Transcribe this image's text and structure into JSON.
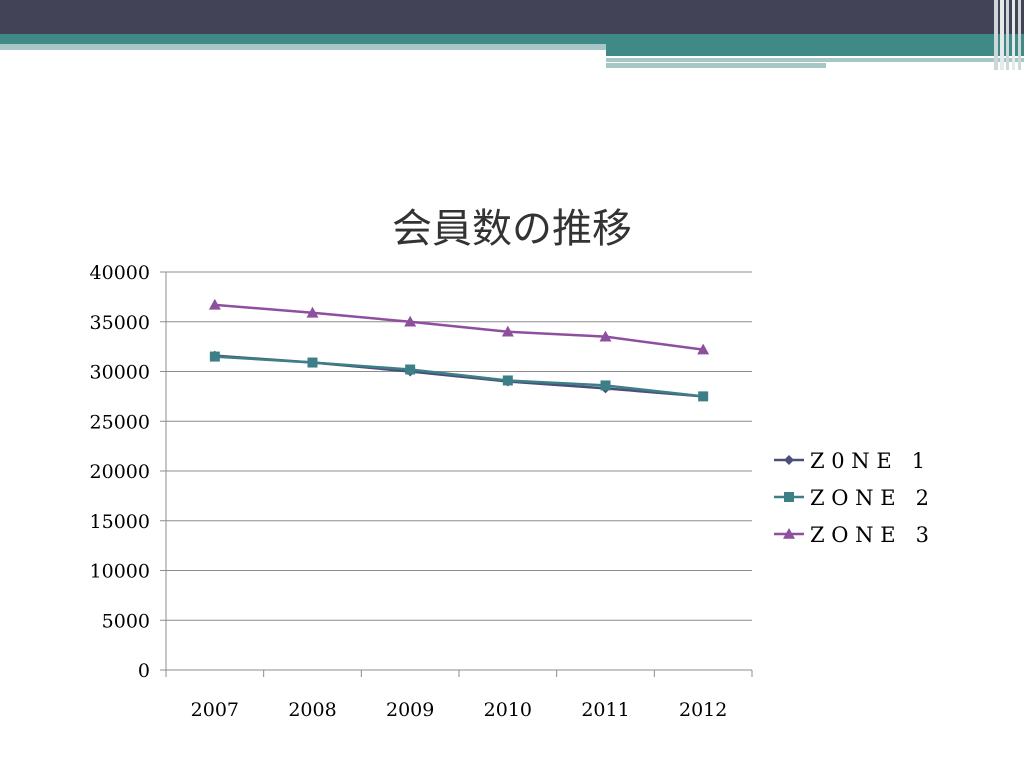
{
  "chart_data": {
    "type": "line",
    "title": "会員数の推移",
    "categories": [
      "2007",
      "2008",
      "2009",
      "2010",
      "2011",
      "2012"
    ],
    "ylim": [
      0,
      40000
    ],
    "yticks": [
      0,
      5000,
      10000,
      15000,
      20000,
      25000,
      30000,
      35000,
      40000
    ],
    "ytick_labels": [
      "0",
      "5000",
      "10000",
      "15000",
      "20000",
      "25000",
      "30000",
      "35000",
      "40000"
    ],
    "grid": true,
    "legend_position": "right",
    "series": [
      {
        "name": "Z 0 N E   1",
        "values": [
          31600,
          30900,
          30000,
          29000,
          28300,
          27500
        ],
        "color": "#4a4f7a",
        "marker": "diamond"
      },
      {
        "name": "Z O N E   2",
        "values": [
          31500,
          30900,
          30200,
          29100,
          28600,
          27500
        ],
        "color": "#3d7f86",
        "marker": "square"
      },
      {
        "name": "Z O N E   3",
        "values": [
          36700,
          35900,
          35000,
          34000,
          33500,
          32200
        ],
        "color": "#8e4f9e",
        "marker": "triangle"
      }
    ]
  }
}
